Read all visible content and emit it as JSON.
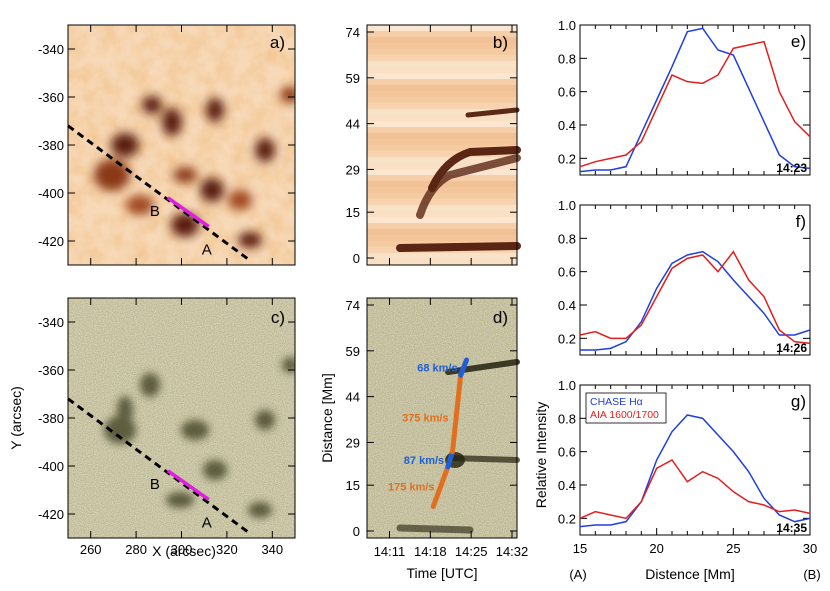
{
  "chart_data": [
    {
      "panel": "a)",
      "type": "image-map",
      "field": "H-alpha intensity (orange)",
      "xlim": [
        250,
        350
      ],
      "ylim": [
        -430,
        -330
      ],
      "xticks": [
        260,
        280,
        300,
        320,
        340
      ],
      "yticks": [
        -340,
        -360,
        -380,
        -400,
        -420
      ],
      "slit": {
        "from": [
          250,
          -372
        ],
        "to": [
          330,
          -428
        ]
      },
      "segment": {
        "from": [
          294,
          -402
        ],
        "to": [
          312,
          -414
        ],
        "start_label": "B",
        "end_label": "A"
      }
    },
    {
      "panel": "b)",
      "type": "time-distance",
      "field": "H-alpha (orange)",
      "yticks": [
        0,
        15,
        29,
        44,
        59,
        74
      ],
      "ylim": [
        0,
        74
      ],
      "xlim_min": [
        0,
        24
      ],
      "xticks_min": [
        3,
        10,
        17,
        24
      ]
    },
    {
      "panel": "c)",
      "type": "image-map",
      "field": "AIA 1600/1700 (green)",
      "xlim": [
        250,
        350
      ],
      "ylim": [
        -430,
        -330
      ],
      "xticks": [
        260,
        280,
        300,
        320,
        340
      ],
      "yticks": [
        -340,
        -360,
        -380,
        -400,
        -420
      ],
      "xlabel": "X (arcsec)",
      "ylabel": "Y (arcsec)",
      "slit": {
        "from": [
          250,
          -372
        ],
        "to": [
          330,
          -428
        ]
      },
      "segment": {
        "from": [
          294,
          -402
        ],
        "to": [
          312,
          -414
        ],
        "start_label": "B",
        "end_label": "A"
      }
    },
    {
      "panel": "d)",
      "type": "time-distance",
      "field": "AIA (green)",
      "yticks": [
        0,
        15,
        29,
        44,
        59,
        74
      ],
      "ylim": [
        0,
        74
      ],
      "xlim_min": [
        0,
        24
      ],
      "xticks_min": [
        3,
        10,
        17,
        24
      ],
      "xtick_labels": [
        "14:11",
        "14:18",
        "14:25",
        "14:32"
      ],
      "xlabel": "Time [UTC]",
      "ylabel": "Distance [Mm]",
      "fits": [
        {
          "label": "175 km/s",
          "color": "#e07020",
          "from": [
            10.5,
            8
          ],
          "to": [
            13.0,
            21
          ]
        },
        {
          "label": "87 km/s",
          "color": "#1f5fd6",
          "from": [
            13.0,
            21
          ],
          "to": [
            13.8,
            26
          ]
        },
        {
          "label": "375 km/s",
          "color": "#e07020",
          "from": [
            13.8,
            26
          ],
          "to": [
            15.2,
            51
          ]
        },
        {
          "label": "68 km/s",
          "color": "#1f5fd6",
          "from": [
            15.2,
            51
          ],
          "to": [
            16.2,
            56
          ]
        }
      ]
    },
    {
      "panel": "e)",
      "type": "line",
      "time_label": "14:23",
      "xlim": [
        15,
        30
      ],
      "ylim": [
        0.1,
        1.0
      ],
      "yticks": [
        0.2,
        0.4,
        0.6,
        0.8,
        1.0
      ],
      "xticks": [
        15,
        20,
        25,
        30
      ],
      "x": [
        15,
        16,
        17,
        18,
        19,
        20,
        21,
        22,
        23,
        24,
        25,
        26,
        27,
        28,
        29,
        30
      ],
      "series": [
        {
          "name": "CHASE Hα",
          "color": "#1f3fe0",
          "values": [
            0.12,
            0.13,
            0.13,
            0.15,
            0.35,
            0.55,
            0.75,
            0.96,
            0.98,
            0.85,
            0.82,
            0.62,
            0.42,
            0.22,
            0.15,
            0.14
          ]
        },
        {
          "name": "AIA 1600/1700",
          "color": "#e02020",
          "values": [
            0.15,
            0.18,
            0.2,
            0.22,
            0.3,
            0.5,
            0.7,
            0.66,
            0.65,
            0.7,
            0.86,
            0.88,
            0.9,
            0.6,
            0.42,
            0.33
          ]
        }
      ]
    },
    {
      "panel": "f)",
      "type": "line",
      "time_label": "14:26",
      "xlim": [
        15,
        30
      ],
      "ylim": [
        0.1,
        1.0
      ],
      "yticks": [
        0.2,
        0.4,
        0.6,
        0.8,
        1.0
      ],
      "xticks": [
        15,
        20,
        25,
        30
      ],
      "x": [
        15,
        16,
        17,
        18,
        19,
        20,
        21,
        22,
        23,
        24,
        25,
        26,
        27,
        28,
        29,
        30
      ],
      "series": [
        {
          "name": "CHASE Hα",
          "color": "#1f3fe0",
          "values": [
            0.13,
            0.13,
            0.14,
            0.18,
            0.3,
            0.5,
            0.65,
            0.7,
            0.72,
            0.66,
            0.55,
            0.45,
            0.35,
            0.22,
            0.22,
            0.25
          ]
        },
        {
          "name": "AIA 1600/1700",
          "color": "#e02020",
          "values": [
            0.22,
            0.24,
            0.2,
            0.2,
            0.28,
            0.45,
            0.62,
            0.68,
            0.7,
            0.6,
            0.72,
            0.55,
            0.45,
            0.25,
            0.18,
            0.17
          ]
        }
      ]
    },
    {
      "panel": "g)",
      "type": "line",
      "time_label": "14:35",
      "xlim": [
        15,
        30
      ],
      "ylim": [
        0.1,
        1.0
      ],
      "yticks": [
        0.2,
        0.4,
        0.6,
        0.8,
        1.0
      ],
      "xticks": [
        15,
        20,
        25,
        30
      ],
      "x": [
        15,
        16,
        17,
        18,
        19,
        20,
        21,
        22,
        23,
        24,
        25,
        26,
        27,
        28,
        29,
        30
      ],
      "series": [
        {
          "name": "CHASE Hα",
          "color": "#1f3fe0",
          "values": [
            0.15,
            0.16,
            0.16,
            0.18,
            0.3,
            0.55,
            0.72,
            0.82,
            0.8,
            0.7,
            0.6,
            0.48,
            0.32,
            0.22,
            0.18,
            0.2
          ]
        },
        {
          "name": "AIA 1600/1700",
          "color": "#e02020",
          "values": [
            0.2,
            0.24,
            0.22,
            0.2,
            0.3,
            0.5,
            0.55,
            0.42,
            0.48,
            0.44,
            0.36,
            0.3,
            0.28,
            0.24,
            0.25,
            0.23
          ]
        }
      ],
      "legend": [
        "CHASE Hα",
        "AIA 1600/1700"
      ],
      "xlabel": "Distence [Mm]",
      "ylabel": "Relative Intensity",
      "x_end_labels": [
        "(A)",
        "(B)"
      ]
    }
  ]
}
